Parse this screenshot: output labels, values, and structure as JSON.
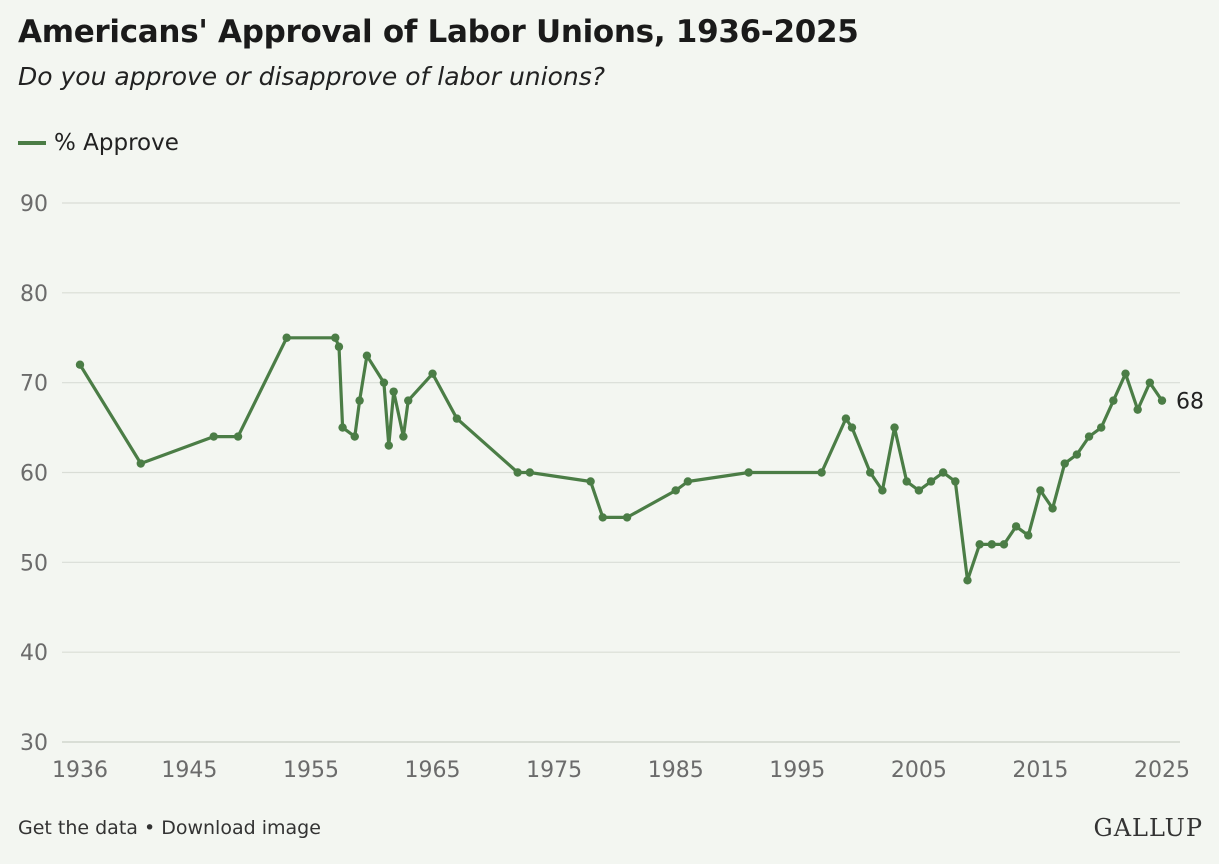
{
  "chart_data": {
    "type": "line",
    "title": "Americans' Approval of Labor Unions, 1936-2025",
    "subtitle": "Do you approve or disapprove of labor unions?",
    "xlabel": "",
    "ylabel": "",
    "xlim": [
      1936,
      2025
    ],
    "ylim": [
      30,
      90
    ],
    "y_ticks": [
      90,
      80,
      70,
      60,
      50,
      40,
      30
    ],
    "x_ticks": [
      1936,
      1945,
      1955,
      1965,
      1975,
      1985,
      1995,
      2005,
      2015,
      2025
    ],
    "grid": true,
    "legend_position": "top-left",
    "series": [
      {
        "name": "% Approve",
        "color": "#4b7d46",
        "end_label": "68",
        "points": [
          [
            1936,
            72
          ],
          [
            1941,
            61
          ],
          [
            1947,
            64
          ],
          [
            1949,
            64
          ],
          [
            1953,
            75
          ],
          [
            1957,
            75
          ],
          [
            1957.3,
            74
          ],
          [
            1957.6,
            65
          ],
          [
            1958.6,
            64
          ],
          [
            1959,
            68
          ],
          [
            1959.6,
            73
          ],
          [
            1961,
            70
          ],
          [
            1961.4,
            63
          ],
          [
            1961.8,
            69
          ],
          [
            1962.6,
            64
          ],
          [
            1963,
            68
          ],
          [
            1965,
            71
          ],
          [
            1967,
            66
          ],
          [
            1972,
            60
          ],
          [
            1973,
            60
          ],
          [
            1978,
            59
          ],
          [
            1979,
            55
          ],
          [
            1981,
            55
          ],
          [
            1985,
            58
          ],
          [
            1986,
            59
          ],
          [
            1991,
            60
          ],
          [
            1997,
            60
          ],
          [
            1999,
            66
          ],
          [
            1999.5,
            65
          ],
          [
            2001,
            60
          ],
          [
            2002,
            58
          ],
          [
            2003,
            65
          ],
          [
            2004,
            59
          ],
          [
            2005,
            58
          ],
          [
            2006,
            59
          ],
          [
            2007,
            60
          ],
          [
            2008,
            59
          ],
          [
            2009,
            48
          ],
          [
            2010,
            52
          ],
          [
            2011,
            52
          ],
          [
            2012,
            52
          ],
          [
            2013,
            54
          ],
          [
            2014,
            53
          ],
          [
            2015,
            58
          ],
          [
            2016,
            56
          ],
          [
            2017,
            61
          ],
          [
            2018,
            62
          ],
          [
            2019,
            64
          ],
          [
            2020,
            65
          ],
          [
            2021,
            68
          ],
          [
            2022,
            71
          ],
          [
            2023,
            67
          ],
          [
            2024,
            70
          ],
          [
            2025,
            68
          ]
        ]
      }
    ]
  },
  "footer": {
    "get_data": "Get the data",
    "separator": " • ",
    "download": "Download image"
  },
  "brand": "GALLUP"
}
